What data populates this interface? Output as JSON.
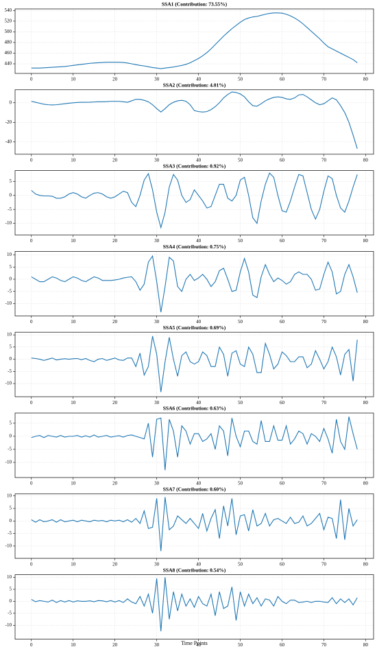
{
  "chart_data": [
    {
      "type": "line",
      "title": "SSA1 (Contribution: 73.55%)",
      "color": "#1f77b4",
      "grid": true,
      "x": [
        0,
        1,
        2,
        3,
        4,
        5,
        6,
        7,
        8,
        9,
        10,
        11,
        12,
        13,
        14,
        15,
        16,
        17,
        18,
        19,
        20,
        21,
        22,
        23,
        24,
        25,
        26,
        27,
        28,
        29,
        30,
        31,
        32,
        33,
        34,
        35,
        36,
        37,
        38,
        39,
        40,
        41,
        42,
        43,
        44,
        45,
        46,
        47,
        48,
        49,
        50,
        51,
        52,
        53,
        54,
        55,
        56,
        57,
        58,
        59,
        60,
        61,
        62,
        63,
        64,
        65,
        66,
        67,
        68,
        69,
        70,
        71,
        72,
        73,
        74,
        75,
        76,
        77,
        78
      ],
      "values": [
        432,
        432,
        432,
        432.5,
        433,
        433.5,
        434,
        434.5,
        435,
        436,
        437,
        438,
        439,
        440,
        441,
        441.5,
        442,
        442.5,
        443,
        443,
        443,
        443,
        442.5,
        441.5,
        440,
        438.5,
        437,
        436,
        434.5,
        433,
        432,
        431,
        432,
        433,
        434,
        435.5,
        437,
        439,
        442,
        446,
        450,
        455,
        461,
        468,
        476,
        484,
        492,
        499,
        506,
        512,
        518,
        523,
        526,
        528,
        529,
        531,
        533,
        534.5,
        535.5,
        535.5,
        535,
        533,
        530,
        526,
        521,
        515,
        508,
        501,
        494,
        487,
        479,
        472,
        468,
        464,
        460,
        456,
        452,
        448,
        442
      ],
      "xlim": [
        -3.9,
        81.9
      ],
      "xticks": [
        0,
        10,
        20,
        30,
        40,
        50,
        60,
        70,
        80
      ],
      "ylim": [
        422,
        543
      ],
      "yticks": [
        440,
        460,
        480,
        500,
        520,
        540
      ]
    },
    {
      "type": "line",
      "title": "SSA2 (Contribution: 4.01%)",
      "color": "#1f77b4",
      "grid": true,
      "x": [
        0,
        1,
        2,
        3,
        4,
        5,
        6,
        7,
        8,
        9,
        10,
        11,
        12,
        13,
        14,
        15,
        16,
        17,
        18,
        19,
        20,
        21,
        22,
        23,
        24,
        25,
        26,
        27,
        28,
        29,
        30,
        31,
        32,
        33,
        34,
        35,
        36,
        37,
        38,
        39,
        40,
        41,
        42,
        43,
        44,
        45,
        46,
        47,
        48,
        49,
        50,
        51,
        52,
        53,
        54,
        55,
        56,
        57,
        58,
        59,
        60,
        61,
        62,
        63,
        64,
        65,
        66,
        67,
        68,
        69,
        70,
        71,
        72,
        73,
        74,
        75,
        76,
        77,
        78
      ],
      "values": [
        1.5,
        0.5,
        -0.5,
        -1.5,
        -2,
        -2.2,
        -2,
        -1.5,
        -1,
        -0.5,
        0,
        0.3,
        0.5,
        0.5,
        0.6,
        0.8,
        1,
        1,
        1.2,
        1.5,
        1.5,
        1.5,
        1,
        0.5,
        2,
        3.5,
        3.5,
        2.5,
        1,
        -2,
        -6,
        -9.5,
        -6,
        -2,
        0.5,
        2,
        2.5,
        1.5,
        -2,
        -8,
        -9,
        -9.5,
        -9,
        -7,
        -4,
        0,
        5,
        8.5,
        11,
        10.5,
        9,
        6,
        1,
        -3,
        -3.5,
        -1,
        2,
        4,
        5.5,
        6,
        5.5,
        4,
        3.5,
        5,
        8,
        8.5,
        6,
        3,
        0,
        -2,
        -1,
        2,
        5,
        3,
        -3,
        -10,
        -20,
        -33,
        -47
      ],
      "xlim": [
        -3.9,
        81.9
      ],
      "xticks": [
        0,
        10,
        20,
        30,
        40,
        50,
        60,
        70,
        80
      ],
      "ylim": [
        -52.6,
        13.3
      ],
      "yticks": [
        -40,
        -20,
        0
      ]
    },
    {
      "type": "line",
      "title": "SSA3 (Contribution: 0.92%)",
      "color": "#1f77b4",
      "grid": true,
      "x": [
        0,
        1,
        2,
        3,
        4,
        5,
        6,
        7,
        8,
        9,
        10,
        11,
        12,
        13,
        14,
        15,
        16,
        17,
        18,
        19,
        20,
        21,
        22,
        23,
        24,
        25,
        26,
        27,
        28,
        29,
        30,
        31,
        32,
        33,
        34,
        35,
        36,
        37,
        38,
        39,
        40,
        41,
        42,
        43,
        44,
        45,
        46,
        47,
        48,
        49,
        50,
        51,
        52,
        53,
        54,
        55,
        56,
        57,
        58,
        59,
        60,
        61,
        62,
        63,
        64,
        65,
        66,
        67,
        68,
        69,
        70,
        71,
        72,
        73,
        74,
        75,
        76,
        77,
        78
      ],
      "values": [
        1.8,
        0.5,
        0,
        -0.2,
        -0.2,
        -0.3,
        -1,
        -1,
        -0.5,
        0.5,
        1,
        0.5,
        -0.5,
        -1,
        0,
        0.8,
        1,
        0.5,
        -0.5,
        -1,
        -0.5,
        0.5,
        1.5,
        1,
        -2.5,
        -4,
        0,
        5.5,
        7.8,
        2,
        -6,
        -11.5,
        -6,
        3,
        7.5,
        5.5,
        0,
        -2.5,
        -1.5,
        2,
        0,
        -2,
        -4.5,
        -4,
        0,
        4,
        4,
        -1,
        -2,
        0,
        5.5,
        6.5,
        0,
        -8,
        -10,
        -2,
        4,
        8,
        6.5,
        0,
        -5.5,
        -6,
        -2,
        3,
        7.5,
        7,
        1,
        -5,
        -8.5,
        -5,
        1.5,
        7,
        6,
        0,
        -4.5,
        -6,
        -2,
        3,
        7.5
      ],
      "xlim": [
        -3.9,
        81.9
      ],
      "xticks": [
        0,
        10,
        20,
        30,
        40,
        50,
        60,
        70,
        80
      ],
      "ylim": [
        -14.2,
        8.9
      ],
      "yticks": [
        -10,
        -5,
        0,
        5
      ]
    },
    {
      "type": "line",
      "title": "SSA4 (Contribution: 0.75%)",
      "color": "#1f77b4",
      "grid": true,
      "x": [
        0,
        1,
        2,
        3,
        4,
        5,
        6,
        7,
        8,
        9,
        10,
        11,
        12,
        13,
        14,
        15,
        16,
        17,
        18,
        19,
        20,
        21,
        22,
        23,
        24,
        25,
        26,
        27,
        28,
        29,
        30,
        31,
        32,
        33,
        34,
        35,
        36,
        37,
        38,
        39,
        40,
        41,
        42,
        43,
        44,
        45,
        46,
        47,
        48,
        49,
        50,
        51,
        52,
        53,
        54,
        55,
        56,
        57,
        58,
        59,
        60,
        61,
        62,
        63,
        64,
        65,
        66,
        67,
        68,
        69,
        70,
        71,
        72,
        73,
        74,
        75,
        76,
        77,
        78
      ],
      "values": [
        1,
        0,
        -1,
        -1,
        0,
        1,
        0.5,
        -0.5,
        -1,
        0,
        1,
        0.5,
        -0.5,
        -1,
        0,
        1,
        0.5,
        -0.5,
        -0.5,
        -0.5,
        -0.3,
        0,
        0.5,
        0.8,
        1,
        -1,
        -4.5,
        -2,
        7,
        9.5,
        -1,
        -13.5,
        -3,
        9,
        7.5,
        -3,
        -5,
        0,
        2,
        -0.5,
        0.5,
        2,
        0,
        -3,
        -1,
        3.5,
        4.5,
        0,
        -5,
        -4.5,
        3,
        8.5,
        3,
        -6.5,
        -7.5,
        1,
        6,
        2,
        -1,
        0.5,
        -0.5,
        -2,
        -1,
        2,
        3,
        2,
        2,
        0,
        -4.5,
        -4,
        2,
        7,
        3,
        -6,
        -5,
        2,
        6,
        1,
        -5.5
      ],
      "xlim": [
        -3.9,
        81.9
      ],
      "xticks": [
        0,
        10,
        20,
        30,
        40,
        50,
        60,
        70,
        80
      ],
      "ylim": [
        -15,
        11.4
      ],
      "yticks": [
        -10,
        -5,
        0,
        5,
        10
      ]
    },
    {
      "type": "line",
      "title": "SSA5 (Contribution: 0.69%)",
      "color": "#1f77b4",
      "grid": true,
      "x": [
        0,
        1,
        2,
        3,
        4,
        5,
        6,
        7,
        8,
        9,
        10,
        11,
        12,
        13,
        14,
        15,
        16,
        17,
        18,
        19,
        20,
        21,
        22,
        23,
        24,
        25,
        26,
        27,
        28,
        29,
        30,
        31,
        32,
        33,
        34,
        35,
        36,
        37,
        38,
        39,
        40,
        41,
        42,
        43,
        44,
        45,
        46,
        47,
        48,
        49,
        50,
        51,
        52,
        53,
        54,
        55,
        56,
        57,
        58,
        59,
        60,
        61,
        62,
        63,
        64,
        65,
        66,
        67,
        68,
        69,
        70,
        71,
        72,
        73,
        74,
        75,
        76,
        77,
        78
      ],
      "values": [
        0.5,
        0.3,
        0,
        -0.5,
        0,
        0.5,
        -0.3,
        0,
        0.2,
        0,
        0.2,
        0.3,
        -0.2,
        0.3,
        -0.5,
        -1,
        0,
        0.3,
        -0.5,
        0,
        0.5,
        -0.3,
        -0.5,
        0.5,
        0.5,
        -3,
        2.5,
        -6.5,
        -3,
        9.5,
        2,
        -13.5,
        -1,
        9,
        0,
        -7,
        1.5,
        3,
        -1,
        -2,
        -1,
        3,
        1.5,
        -3,
        -3,
        5,
        2,
        -7,
        2.5,
        3.5,
        -2,
        -3,
        5,
        2,
        -5.5,
        -5.5,
        6.5,
        2,
        -4,
        -2,
        3,
        1.5,
        -1,
        -1,
        1,
        1,
        -3.5,
        -2,
        3.5,
        0,
        -4,
        -1,
        5,
        1,
        -6.5,
        2,
        4,
        -9,
        8
      ],
      "xlim": [
        -3.9,
        81.9
      ],
      "xticks": [
        0,
        10,
        20,
        30,
        40,
        50,
        60,
        70,
        80
      ],
      "ylim": [
        -15.4,
        11.1
      ],
      "yticks": [
        -10,
        -5,
        0,
        5,
        10
      ]
    },
    {
      "type": "line",
      "title": "SSA6 (Contribution: 0.63%)",
      "color": "#1f77b4",
      "grid": true,
      "x": [
        0,
        1,
        2,
        3,
        4,
        5,
        6,
        7,
        8,
        9,
        10,
        11,
        12,
        13,
        14,
        15,
        16,
        17,
        18,
        19,
        20,
        21,
        22,
        23,
        24,
        25,
        26,
        27,
        28,
        29,
        30,
        31,
        32,
        33,
        34,
        35,
        36,
        37,
        38,
        39,
        40,
        41,
        42,
        43,
        44,
        45,
        46,
        47,
        48,
        49,
        50,
        51,
        52,
        53,
        54,
        55,
        56,
        57,
        58,
        59,
        60,
        61,
        62,
        63,
        64,
        65,
        66,
        67,
        68,
        69,
        70,
        71,
        72,
        73,
        74,
        75,
        76,
        77,
        78
      ],
      "values": [
        -0.5,
        0,
        0.3,
        -0.5,
        0.3,
        0,
        -0.3,
        0.3,
        -0.3,
        0,
        0,
        0.3,
        -0.3,
        0.2,
        -0.3,
        0.5,
        -0.3,
        0,
        0.3,
        -0.3,
        0,
        0.2,
        -0.3,
        0.3,
        0.5,
        0,
        -0.5,
        -1,
        5,
        -8,
        6.5,
        7,
        -13,
        6.5,
        2,
        -8,
        4,
        2,
        -3,
        1,
        1,
        -2,
        -1,
        1,
        -5,
        4,
        2,
        -7.5,
        7,
        0,
        -4,
        2,
        2,
        -2,
        -3,
        6,
        -2,
        -2,
        4,
        -1.5,
        -1.5,
        4,
        -3,
        -1,
        2,
        1,
        -3,
        1,
        0,
        -2,
        3,
        -1,
        -6.5,
        6.5,
        -2,
        -5,
        7.5,
        1,
        -5
      ],
      "xlim": [
        -3.9,
        81.9
      ],
      "xticks": [
        0,
        10,
        20,
        30,
        40,
        50,
        60,
        70,
        80
      ],
      "ylim": [
        -15.8,
        8.9
      ],
      "yticks": [
        -10,
        -5,
        0,
        5
      ]
    },
    {
      "type": "line",
      "title": "SSA7 (Contribution: 0.60%)",
      "color": "#1f77b4",
      "grid": true,
      "x": [
        0,
        1,
        2,
        3,
        4,
        5,
        6,
        7,
        8,
        9,
        10,
        11,
        12,
        13,
        14,
        15,
        16,
        17,
        18,
        19,
        20,
        21,
        22,
        23,
        24,
        25,
        26,
        27,
        28,
        29,
        30,
        31,
        32,
        33,
        34,
        35,
        36,
        37,
        38,
        39,
        40,
        41,
        42,
        43,
        44,
        45,
        46,
        47,
        48,
        49,
        50,
        51,
        52,
        53,
        54,
        55,
        56,
        57,
        58,
        59,
        60,
        61,
        62,
        63,
        64,
        65,
        66,
        67,
        68,
        69,
        70,
        71,
        72,
        73,
        74,
        75,
        76,
        77,
        78
      ],
      "values": [
        0.5,
        -0.5,
        0.5,
        -0.3,
        0,
        0.5,
        -0.5,
        0.5,
        -0.3,
        0,
        0.3,
        -0.3,
        0.3,
        0,
        -0.3,
        0.3,
        0,
        0.2,
        -0.3,
        0.3,
        0,
        0.3,
        -0.3,
        0.5,
        -0.5,
        1,
        -1,
        4,
        -3,
        -2.5,
        9,
        -12,
        9.5,
        -3.5,
        -2,
        2,
        0.5,
        -1,
        1,
        -1,
        -3,
        3,
        -4,
        1,
        4.5,
        -7,
        6,
        -2,
        9,
        -5.5,
        2,
        2.5,
        -4,
        4.5,
        -2,
        -1,
        3,
        -2,
        0.5,
        1,
        0,
        -1,
        1.5,
        -1,
        -0.5,
        2,
        -2,
        -1,
        1,
        3,
        -3.5,
        1.5,
        1,
        -7,
        8.5,
        -7.5,
        5,
        -2,
        0.5
      ],
      "xlim": [
        -3.9,
        81.9
      ],
      "xticks": [
        0,
        10,
        20,
        30,
        40,
        50,
        60,
        70,
        80
      ],
      "ylim": [
        -14.9,
        10.8
      ],
      "yticks": [
        -10,
        -5,
        0,
        5,
        10
      ]
    },
    {
      "type": "line",
      "title": "SSA8 (Contribution: 0.54%)",
      "xlabel": "Time Points",
      "color": "#1f77b4",
      "grid": true,
      "x": [
        0,
        1,
        2,
        3,
        4,
        5,
        6,
        7,
        8,
        9,
        10,
        11,
        12,
        13,
        14,
        15,
        16,
        17,
        18,
        19,
        20,
        21,
        22,
        23,
        24,
        25,
        26,
        27,
        28,
        29,
        30,
        31,
        32,
        33,
        34,
        35,
        36,
        37,
        38,
        39,
        40,
        41,
        42,
        43,
        44,
        45,
        46,
        47,
        48,
        49,
        50,
        51,
        52,
        53,
        54,
        55,
        56,
        57,
        58,
        59,
        60,
        61,
        62,
        63,
        64,
        65,
        66,
        67,
        68,
        69,
        70,
        71,
        72,
        73,
        74,
        75,
        76,
        77,
        78
      ],
      "values": [
        0.8,
        -0.2,
        0.3,
        0,
        -0.3,
        0.5,
        -0.5,
        0.3,
        -0.3,
        0.3,
        -0.3,
        0.2,
        0,
        0,
        0.2,
        -0.2,
        0.3,
        0.2,
        -0.2,
        0.3,
        -0.3,
        0.3,
        -0.5,
        1,
        -0.3,
        -1,
        2,
        -2,
        3,
        -5,
        9.5,
        -12.5,
        10,
        -7.5,
        4,
        -4,
        3,
        -2,
        1,
        -2.5,
        2,
        -1,
        -2,
        3,
        -6,
        4,
        -3,
        -2,
        6,
        -8,
        4,
        -2,
        3,
        -1,
        1.5,
        -2,
        1,
        0.5,
        -2,
        2,
        0,
        -1,
        0.5,
        0.5,
        -0.5,
        -0.3,
        0,
        -0.5,
        0,
        0,
        -0.3,
        -0.5,
        1.5,
        -1,
        1,
        -0.5,
        1,
        -1.5,
        1.5
      ],
      "xlim": [
        -3.9,
        81.9
      ],
      "xticks": [
        0,
        10,
        20,
        30,
        40,
        50,
        60,
        70,
        80
      ],
      "ylim": [
        -15.8,
        11.1
      ],
      "yticks": [
        -10,
        -5,
        0,
        5,
        10
      ]
    }
  ]
}
